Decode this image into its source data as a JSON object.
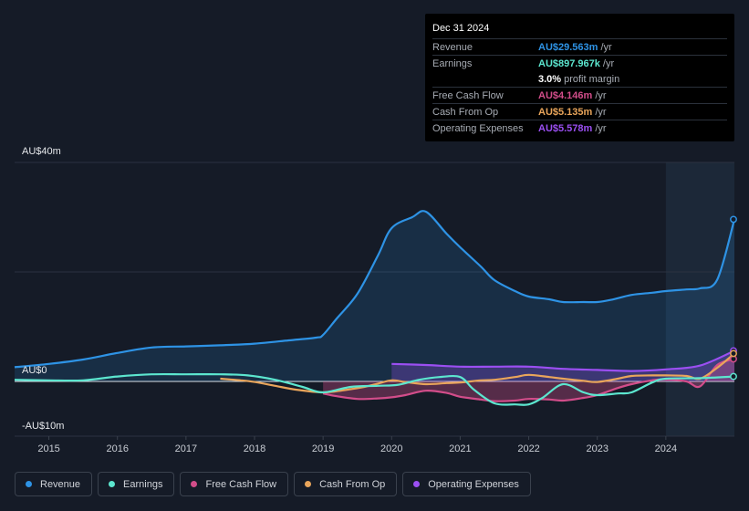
{
  "tooltip": {
    "date": "Dec 31 2024",
    "rows": [
      {
        "label": "Revenue",
        "value": "AU$29.563m",
        "unit": "/yr",
        "color": "#2e93e5"
      },
      {
        "label": "Earnings",
        "value": "AU$897.967k",
        "unit": "/yr",
        "color": "#5ce6cf"
      },
      {
        "label": "",
        "value": "3.0%",
        "unit": "profit margin",
        "color": "#ffffff"
      },
      {
        "label": "Free Cash Flow",
        "value": "AU$4.146m",
        "unit": "/yr",
        "color": "#d24d8a"
      },
      {
        "label": "Cash From Op",
        "value": "AU$5.135m",
        "unit": "/yr",
        "color": "#e9a55b"
      },
      {
        "label": "Operating Expenses",
        "value": "AU$5.578m",
        "unit": "/yr",
        "color": "#9b4ff2"
      }
    ]
  },
  "legend": [
    {
      "label": "Revenue",
      "color": "#2e93e5"
    },
    {
      "label": "Earnings",
      "color": "#5ce6cf"
    },
    {
      "label": "Free Cash Flow",
      "color": "#d24d8a"
    },
    {
      "label": "Cash From Op",
      "color": "#e9a55b"
    },
    {
      "label": "Operating Expenses",
      "color": "#9b4ff2"
    }
  ],
  "chart_data": {
    "type": "line",
    "title": "",
    "xlabel": "",
    "ylabel": "",
    "y_labels": [
      "AU$40m",
      "AU$0",
      "-AU$10m"
    ],
    "ylim": [
      -10,
      40
    ],
    "xlim": [
      2014.5,
      2025.0
    ],
    "x_ticks": [
      "2015",
      "2016",
      "2017",
      "2018",
      "2019",
      "2020",
      "2021",
      "2022",
      "2023",
      "2024"
    ],
    "series": [
      {
        "name": "Revenue",
        "color": "#2e93e5",
        "x": [
          2014.5,
          2015.0,
          2015.5,
          2016.0,
          2016.5,
          2017.0,
          2017.5,
          2018.0,
          2018.5,
          2018.9,
          2019.0,
          2019.2,
          2019.5,
          2019.8,
          2020.0,
          2020.3,
          2020.5,
          2020.8,
          2021.0,
          2021.3,
          2021.5,
          2021.8,
          2022.0,
          2022.3,
          2022.5,
          2022.8,
          2023.0,
          2023.2,
          2023.5,
          2023.8,
          2024.0,
          2024.3,
          2024.5,
          2024.75,
          2025.0
        ],
        "values": [
          2.6,
          3.2,
          4.0,
          5.2,
          6.2,
          6.4,
          6.6,
          6.9,
          7.5,
          8.0,
          8.5,
          11.5,
          16.0,
          23.0,
          28.0,
          30.0,
          31.0,
          27.0,
          24.5,
          21.0,
          18.5,
          16.5,
          15.5,
          15.0,
          14.5,
          14.5,
          14.5,
          14.9,
          15.8,
          16.2,
          16.5,
          16.8,
          17.0,
          18.6,
          29.6
        ]
      },
      {
        "name": "Earnings",
        "color": "#5ce6cf",
        "x": [
          2014.5,
          2015.0,
          2015.5,
          2016.0,
          2016.5,
          2017.0,
          2017.5,
          2017.9,
          2018.3,
          2018.7,
          2019.0,
          2019.4,
          2019.8,
          2020.1,
          2020.4,
          2020.7,
          2021.0,
          2021.2,
          2021.5,
          2021.8,
          2022.0,
          2022.2,
          2022.5,
          2022.8,
          2023.0,
          2023.3,
          2023.5,
          2023.8,
          2024.0,
          2024.5,
          2025.0
        ],
        "values": [
          0.3,
          0.2,
          0.2,
          0.9,
          1.3,
          1.3,
          1.3,
          1.1,
          0.3,
          -1.0,
          -2.0,
          -1.0,
          -0.8,
          -0.6,
          0.3,
          0.8,
          0.8,
          -1.5,
          -4.0,
          -4.2,
          -4.2,
          -3.0,
          -0.5,
          -2.0,
          -2.5,
          -2.2,
          -2.0,
          -0.2,
          0.5,
          0.6,
          0.9
        ]
      },
      {
        "name": "Free Cash Flow",
        "color": "#d24d8a",
        "x": [
          2019.0,
          2019.2,
          2019.5,
          2019.8,
          2020.0,
          2020.2,
          2020.5,
          2020.8,
          2021.0,
          2021.3,
          2021.5,
          2021.8,
          2022.0,
          2022.3,
          2022.5,
          2022.8,
          2023.0,
          2023.3,
          2023.5,
          2023.8,
          2024.0,
          2024.3,
          2024.5,
          2024.75,
          2025.0
        ],
        "values": [
          -2.2,
          -2.7,
          -3.2,
          -3.1,
          -2.9,
          -2.5,
          -1.7,
          -2.1,
          -2.8,
          -3.3,
          -3.6,
          -3.5,
          -3.2,
          -3.3,
          -3.5,
          -3.0,
          -2.5,
          -1.2,
          -0.5,
          0.2,
          0.4,
          0.0,
          -0.9,
          3.0,
          4.1
        ]
      },
      {
        "name": "Cash From Op",
        "color": "#e9a55b",
        "x": [
          2017.5,
          2017.8,
          2018.0,
          2018.3,
          2018.6,
          2019.0,
          2019.3,
          2019.6,
          2019.8,
          2020.0,
          2020.2,
          2020.5,
          2020.8,
          2021.0,
          2021.3,
          2021.5,
          2021.8,
          2022.0,
          2022.3,
          2022.5,
          2022.8,
          2023.0,
          2023.3,
          2023.5,
          2023.8,
          2024.0,
          2024.3,
          2024.5,
          2024.75,
          2025.0
        ],
        "values": [
          0.5,
          0.2,
          -0.1,
          -0.8,
          -1.5,
          -2.0,
          -1.6,
          -1.0,
          -0.4,
          0.2,
          -0.1,
          -0.5,
          -0.3,
          -0.2,
          0.2,
          0.3,
          0.8,
          1.2,
          0.8,
          0.5,
          0.1,
          -0.1,
          0.5,
          1.0,
          1.1,
          1.1,
          1.0,
          0.5,
          2.5,
          5.1
        ]
      },
      {
        "name": "Operating Expenses",
        "color": "#9b4ff2",
        "x": [
          2020.0,
          2020.5,
          2021.0,
          2021.5,
          2022.0,
          2022.5,
          2023.0,
          2023.5,
          2024.0,
          2024.5,
          2025.0
        ],
        "values": [
          3.2,
          3.0,
          2.7,
          2.7,
          2.7,
          2.3,
          2.1,
          1.9,
          2.2,
          2.9,
          5.6
        ]
      }
    ],
    "forecast_shade_from": 2024.0
  }
}
